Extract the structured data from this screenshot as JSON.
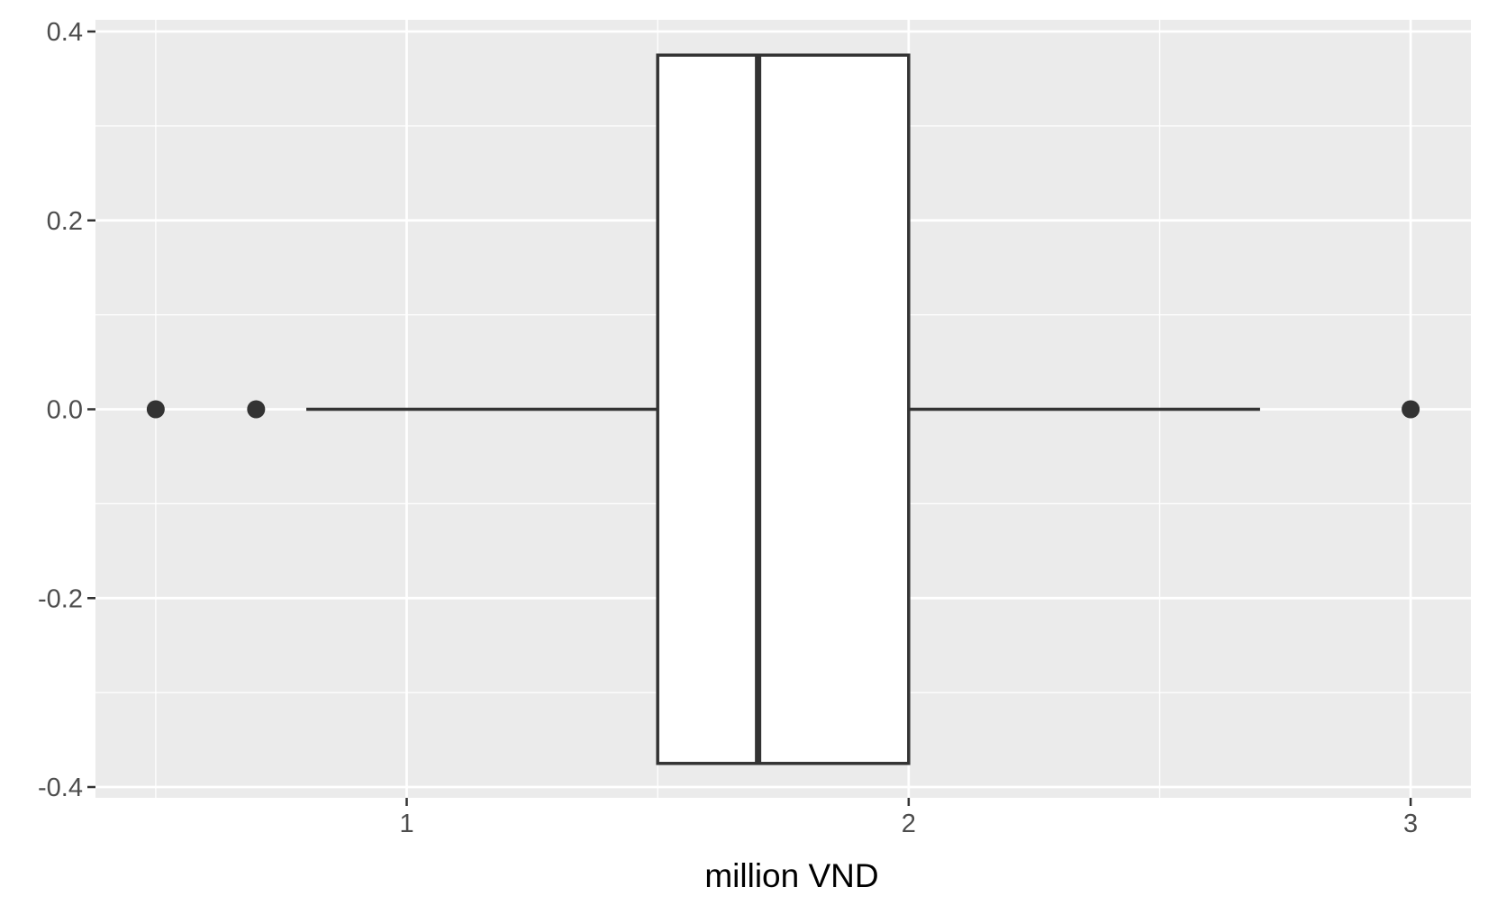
{
  "chart_data": {
    "type": "boxplot",
    "orientation": "horizontal",
    "title": "",
    "xlabel": "million VND",
    "ylabel": "",
    "xlim": [
      0.38,
      3.12
    ],
    "ylim": [
      -0.4,
      0.4
    ],
    "x_ticks": [
      1,
      2,
      3
    ],
    "x_tick_labels": [
      "1",
      "2",
      "3"
    ],
    "x_minor_breaks": [
      0.5,
      1.5,
      2.5
    ],
    "y_ticks": [
      -0.4,
      -0.2,
      0.0,
      0.2,
      0.4
    ],
    "y_tick_labels": [
      "-0.4",
      "-0.2",
      "0.0",
      "0.2",
      "0.4"
    ],
    "y_minor_breaks": [
      -0.3,
      -0.1,
      0.1,
      0.3
    ],
    "grid": true,
    "box": {
      "whisker_low": 0.8,
      "q1": 1.5,
      "median": 1.7,
      "q3": 2.0,
      "whisker_high": 2.7,
      "y_center": 0.0,
      "half_width": 0.375
    },
    "outliers": [
      0.5,
      0.7,
      3.0
    ],
    "colors": {
      "panel": "#ebebeb",
      "grid": "#ffffff",
      "box_fill": "#ffffff",
      "box_line": "#333333",
      "axis_text": "#4d4d4d",
      "tick": "#333333"
    }
  }
}
